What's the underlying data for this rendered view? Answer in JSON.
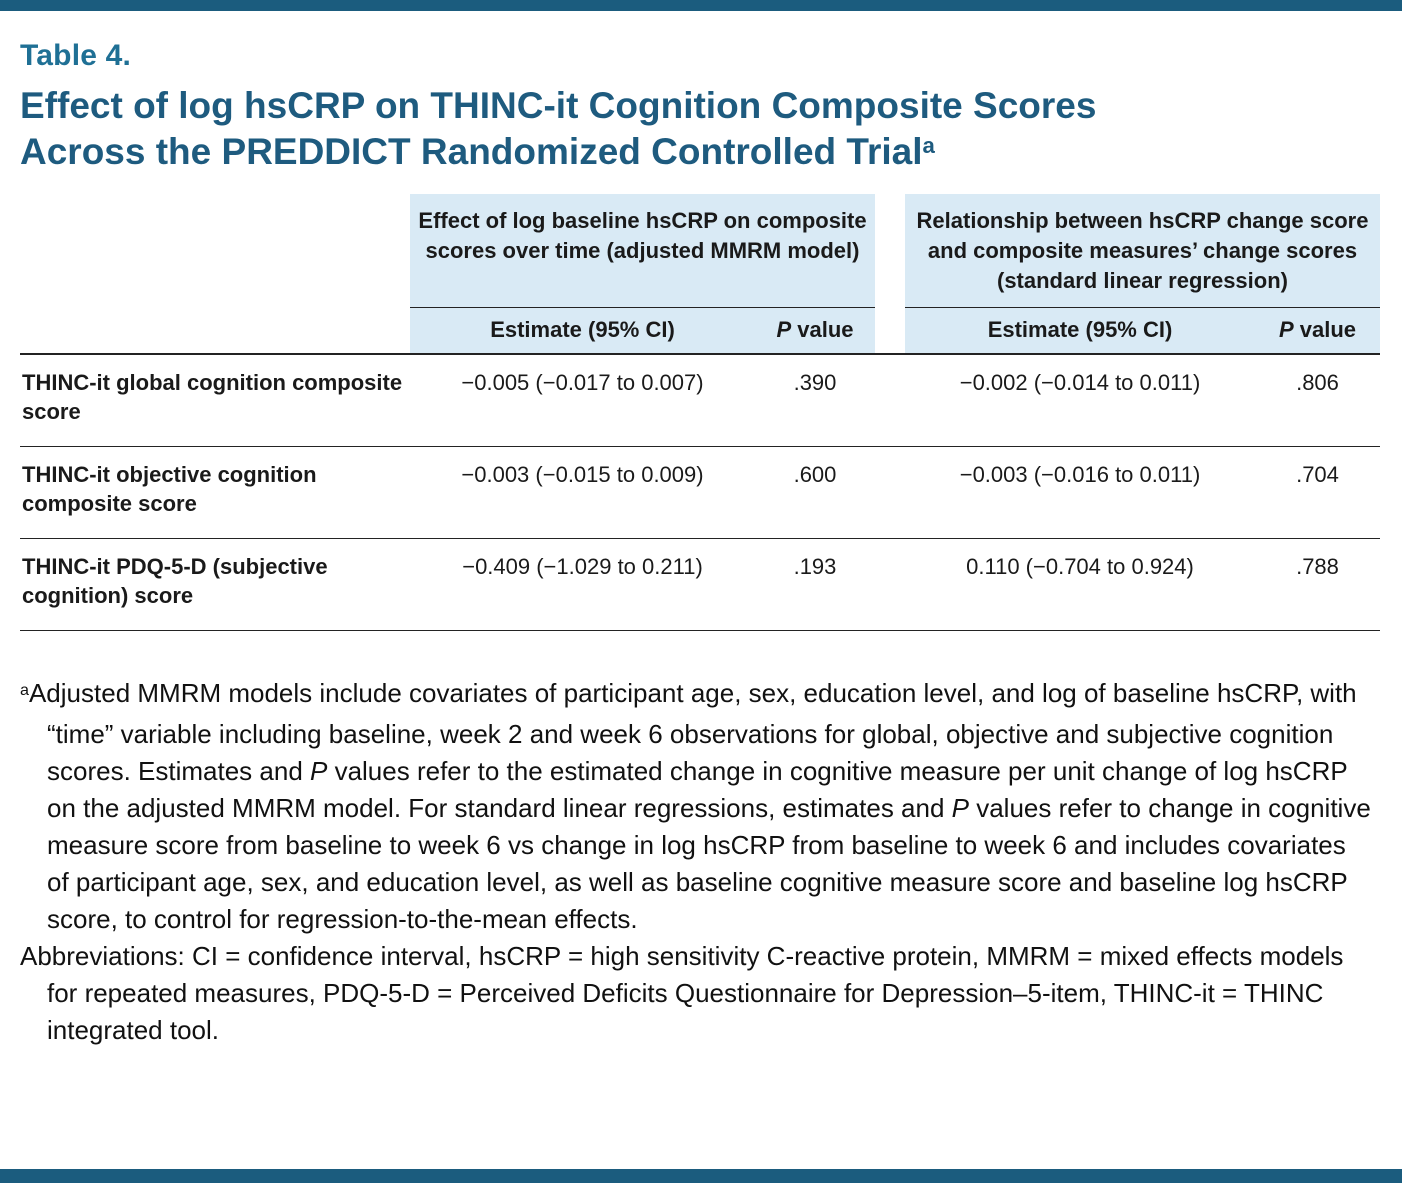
{
  "page": {
    "accent_color": "#1b5c7e",
    "title_color": "#1e5b7f",
    "label_color": "#1f7095",
    "header_bg": "#d9eaf5"
  },
  "table_label": "Table 4.",
  "title_segments": [
    {
      "text": "Effect of log hsCRP on THINC-it Cognition Composite Scores"
    },
    {
      "br": true
    },
    {
      "text": "Across the PREDDICT Randomized Controlled Trial"
    },
    {
      "text": "a",
      "sup": true
    }
  ],
  "table": {
    "groups": [
      {
        "header": "Effect of log baseline hsCRP on composite scores over time (adjusted MMRM model)"
      },
      {
        "header": "Relationship between hsCRP change score and composite measures’ change scores (standard linear regression)"
      }
    ],
    "subheaders": {
      "estimate": "Estimate (95% CI)",
      "p_segments": [
        {
          "text": "P",
          "italic": true
        },
        {
          "text": " value"
        }
      ]
    },
    "rows": [
      {
        "label": "THINC-it global cognition composite score",
        "mmrm_estimate": "−0.005 (−0.017 to 0.007)",
        "mmrm_p": ".390",
        "regression_estimate": "−0.002 (−0.014 to 0.011)",
        "regression_p": ".806"
      },
      {
        "label": "THINC-it objective cognition composite score",
        "mmrm_estimate": "−0.003 (−0.015 to 0.009)",
        "mmrm_p": ".600",
        "regression_estimate": "−0.003 (−0.016 to 0.011)",
        "regression_p": ".704"
      },
      {
        "label": "THINC-it PDQ-5-D (subjective cognition) score",
        "mmrm_estimate": "−0.409 (−1.029 to 0.211)",
        "mmrm_p": ".193",
        "regression_estimate": "0.110 (−0.704 to 0.924)",
        "regression_p": ".788"
      }
    ]
  },
  "footnotes": {
    "note_a_segments": [
      {
        "text": "a",
        "sup": true
      },
      {
        "text": "Adjusted MMRM models include covariates of participant age, sex, education level, and log of baseline hsCRP, with “time” variable including baseline, week 2 and week 6 observations for global, objective and subjective cognition scores. Estimates and "
      },
      {
        "text": "P",
        "italic": true
      },
      {
        "text": " values refer to the estimated change in cognitive measure per unit change of log hsCRP on the adjusted MMRM model. For standard linear regressions, estimates and "
      },
      {
        "text": "P",
        "italic": true
      },
      {
        "text": " values refer to change in cognitive measure score from baseline to week 6 vs change in log hsCRP from baseline to week 6 and includes covariates of participant age, sex, and education level, as well as baseline cognitive measure score and baseline log hsCRP score, to control for regression-to-the-mean effects."
      }
    ],
    "abbreviations": "Abbreviations: CI = confidence interval, hsCRP = high sensitivity C-reactive protein, MMRM = mixed effects models for repeated measures, PDQ-5-D = Perceived Deficits Questionnaire for Depression–5-item, THINC-it = THINC integrated tool."
  }
}
